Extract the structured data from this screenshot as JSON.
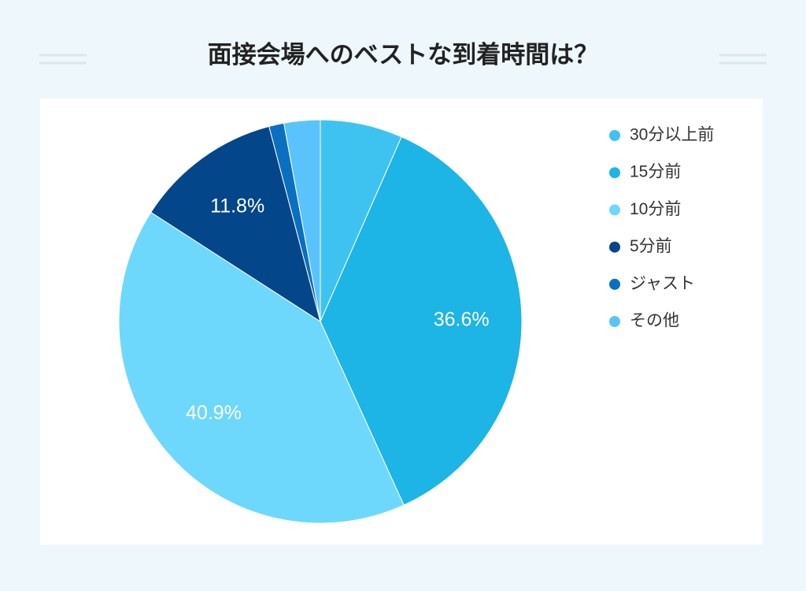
{
  "chart_data": {
    "type": "pie",
    "title": "面接会場へのベストな到着時間は？",
    "categories": [
      "30分以上前",
      "15分前",
      "10分前",
      "5分前",
      "ジャスト",
      "その他"
    ],
    "values": [
      6.6,
      36.6,
      40.9,
      11.8,
      1.2,
      2.9
    ],
    "value_labels": [
      null,
      "36.6%",
      "40.9%",
      "11.8%",
      null,
      null
    ],
    "colors": [
      "#3ec3f0",
      "#1db4e6",
      "#6dd8fb",
      "#03468a",
      "#0a6fbf",
      "#5bc3fb"
    ],
    "legend": "right"
  }
}
